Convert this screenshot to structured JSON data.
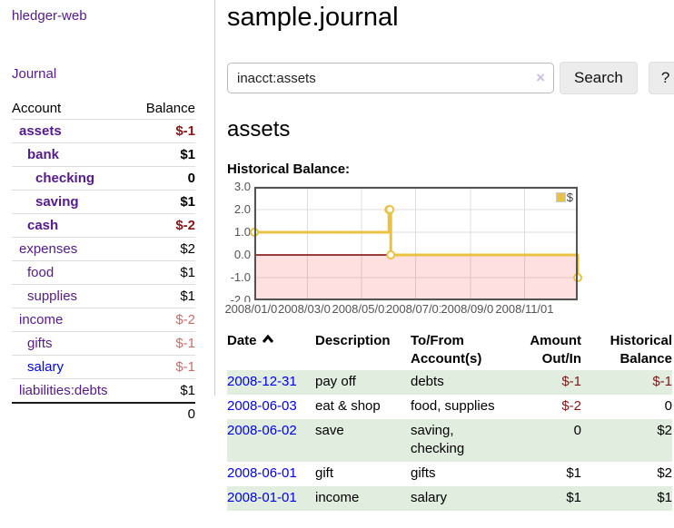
{
  "sidebar": {
    "brand": "hledger-web",
    "journal_link": "Journal",
    "columns": {
      "account": "Account",
      "balance": "Balance"
    },
    "accounts": [
      {
        "name": "assets",
        "balance": "$-1",
        "level": 1,
        "bold": true,
        "negative": true,
        "link_color": "purple"
      },
      {
        "name": "bank",
        "balance": "$1",
        "level": 2,
        "bold": true,
        "negative": false,
        "link_color": "purple"
      },
      {
        "name": "checking",
        "balance": "0",
        "level": 3,
        "bold": true,
        "negative": false,
        "link_color": "purple"
      },
      {
        "name": "saving",
        "balance": "$1",
        "level": 3,
        "bold": true,
        "negative": false,
        "link_color": "purple"
      },
      {
        "name": "cash",
        "balance": "$-2",
        "level": 2,
        "bold": true,
        "negative": true,
        "link_color": "purple"
      },
      {
        "name": "expenses",
        "balance": "$2",
        "level": 1,
        "bold": false,
        "negative": false,
        "link_color": "purple"
      },
      {
        "name": "food",
        "balance": "$1",
        "level": 2,
        "bold": false,
        "negative": false,
        "link_color": "purple"
      },
      {
        "name": "supplies",
        "balance": "$1",
        "level": 2,
        "bold": false,
        "negative": false,
        "link_color": "purple"
      },
      {
        "name": "income",
        "balance": "$-2",
        "level": 1,
        "bold": false,
        "negative": true,
        "link_color": "purple"
      },
      {
        "name": "gifts",
        "balance": "$-1",
        "level": 2,
        "bold": false,
        "negative": true,
        "link_color": "purple"
      },
      {
        "name": "salary",
        "balance": "$-1",
        "level": 2,
        "bold": false,
        "negative": true,
        "link_color": "blue"
      },
      {
        "name": "liabilities:debts",
        "balance": "$1",
        "level": 1,
        "bold": false,
        "negative": false,
        "link_color": "purple"
      }
    ],
    "total": "0"
  },
  "main": {
    "title": "sample.journal",
    "account_heading": "assets",
    "chart_label": "Historical Balance:"
  },
  "search": {
    "value": "inacct:assets",
    "clear_icon": "×",
    "button": "Search",
    "help": "?"
  },
  "chart_data": {
    "type": "line",
    "step": true,
    "series": [
      {
        "name": "$",
        "color": "#E8C240",
        "points": [
          [
            "2008-01-01",
            1
          ],
          [
            "2008-06-01",
            2
          ],
          [
            "2008-06-02",
            2
          ],
          [
            "2008-06-03",
            0
          ],
          [
            "2008-12-31",
            -1
          ]
        ]
      }
    ],
    "xlim": [
      "2008-01-01",
      "2008-12-31"
    ],
    "ylim": [
      -2,
      3
    ],
    "y_ticks": [
      3,
      2,
      1,
      0,
      -1,
      -2
    ],
    "x_ticks": [
      "2008/01/01",
      "2008/03/01",
      "2008/05/01",
      "2008/07/01",
      "2008/09/01",
      "2008/11/01"
    ],
    "grid": true,
    "legend_position": "top-right",
    "zero_line_color": "#7D0000",
    "negative_region_color": "rgba(255,0,0,0.12)",
    "border_color": "#545454"
  },
  "register": {
    "columns": {
      "date": "Date",
      "description": "Description",
      "accounts": "To/From\nAccount(s)",
      "amount": "Amount\nOut/In",
      "balance": "Historical\nBalance"
    },
    "rows": [
      {
        "date": "2008-12-31",
        "description": "pay off",
        "accounts": "debts",
        "amount": "$-1",
        "amount_negative": true,
        "balance": "$-1",
        "balance_negative": true,
        "shaded": true
      },
      {
        "date": "2008-06-03",
        "description": "eat & shop",
        "accounts": "food, supplies",
        "amount": "$-2",
        "amount_negative": true,
        "balance": "0",
        "balance_negative": false,
        "shaded": false
      },
      {
        "date": "2008-06-02",
        "description": "save",
        "accounts": "saving,\nchecking",
        "amount": "0",
        "amount_negative": false,
        "balance": "$2",
        "balance_negative": false,
        "shaded": true
      },
      {
        "date": "2008-06-01",
        "description": "gift",
        "accounts": "gifts",
        "amount": "$1",
        "amount_negative": false,
        "balance": "$2",
        "balance_negative": false,
        "shaded": false
      },
      {
        "date": "2008-01-01",
        "description": "income",
        "accounts": "salary",
        "amount": "$1",
        "amount_negative": false,
        "balance": "$1",
        "balance_negative": false,
        "shaded": true
      }
    ]
  },
  "colors": {
    "purple_link": "#551A8B",
    "blue_link": "#0000EE",
    "negative_strong": "#841717",
    "negative_soft": "#C4706E",
    "row_green": "#E1EDDF",
    "chart_gold": "#E8C240"
  }
}
